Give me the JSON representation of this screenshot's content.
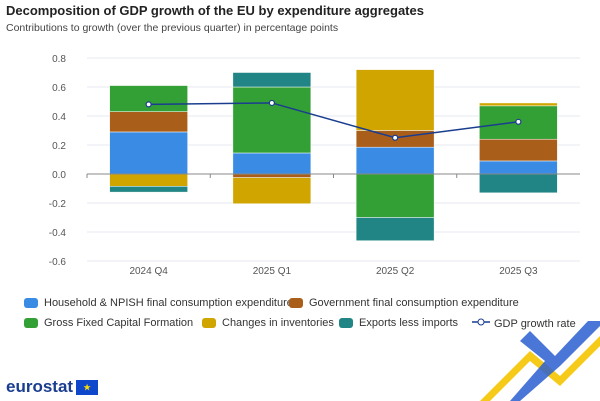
{
  "header": {
    "title": "Decomposition of GDP growth of the EU by expenditure aggregates",
    "subtitle": "Contributions to growth (over the previous quarter) in percentage points"
  },
  "chart_data": {
    "type": "bar",
    "stacked": true,
    "categories": [
      "2024 Q4",
      "2025 Q1",
      "2025 Q2",
      "2025 Q3"
    ],
    "ylim": [
      -0.6,
      0.8
    ],
    "yticks": [
      "0.8",
      "0.6",
      "0.4",
      "0.2",
      "0.0",
      "-0.2",
      "-0.4",
      "-0.6"
    ],
    "ytick_values": [
      0.8,
      0.6,
      0.4,
      0.2,
      0,
      -0.2,
      -0.4,
      -0.6
    ],
    "grid": true,
    "legend_position": "bottom",
    "series": [
      {
        "name": "Household & NPISH final consumption expenditure",
        "color": "#3a8be3",
        "values": [
          0.29,
          0.145,
          0.185,
          0.09
        ]
      },
      {
        "name": "Government final consumption expenditure",
        "color": "#a95f1a",
        "values": [
          0.14,
          -0.025,
          0.115,
          0.15
        ]
      },
      {
        "name": "Gross Fixed Capital Formation",
        "color": "#33a035",
        "values": [
          0.18,
          0.455,
          -0.3,
          0.23
        ]
      },
      {
        "name": "Changes in inventories",
        "color": "#d0a500",
        "values": [
          -0.085,
          -0.18,
          0.42,
          0.02
        ]
      },
      {
        "name": "Exports less imports",
        "color": "#218585",
        "values": [
          -0.04,
          0.1,
          -0.16,
          -0.13
        ]
      }
    ],
    "line": {
      "name": "GDP growth rate",
      "color": "#1a3d8f",
      "values": [
        0.48,
        0.49,
        0.25,
        0.36
      ]
    }
  },
  "footer": {
    "logo": "eurostat"
  }
}
